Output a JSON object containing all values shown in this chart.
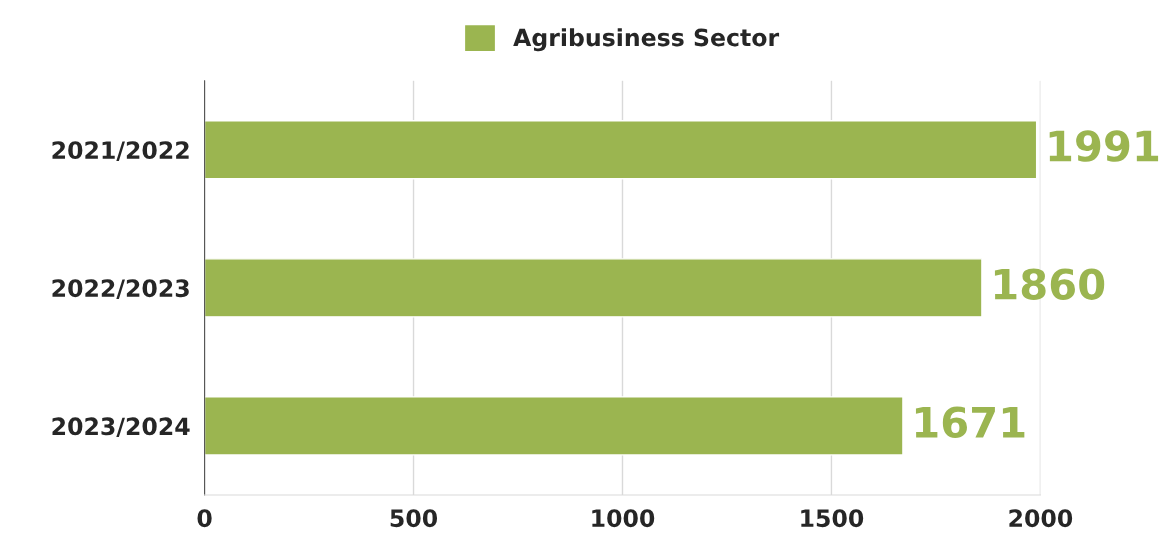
{
  "chart_data": {
    "type": "bar",
    "orientation": "horizontal",
    "categories": [
      "2021/2022",
      "2022/2023",
      "2023/2024"
    ],
    "series": [
      {
        "name": "Agribusiness Sector",
        "color": "#9bb550",
        "values": [
          1991,
          1860,
          1671
        ]
      }
    ],
    "xlim": [
      0,
      2000
    ],
    "xticks": [
      0,
      500,
      1000,
      1500,
      2000
    ],
    "grid": "x",
    "legend": "top",
    "data_labels": true
  }
}
